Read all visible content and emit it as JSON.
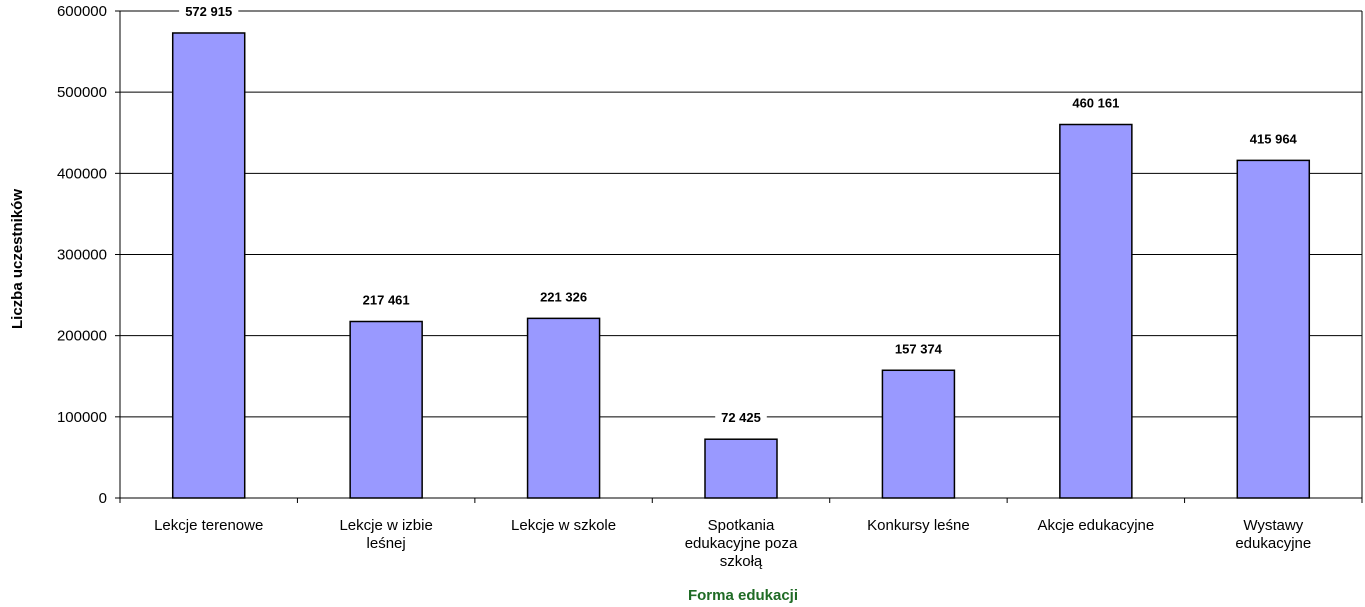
{
  "chart_data": {
    "type": "bar",
    "title": "",
    "xlabel": "Forma edukacji",
    "ylabel": "Liczba uczestników",
    "ylim": [
      0,
      600000
    ],
    "yticks": [
      "0",
      "100000",
      "200000",
      "300000",
      "400000",
      "500000",
      "600000"
    ],
    "grid": true,
    "legend": "none",
    "categories": [
      [
        "Lekcje terenowe"
      ],
      [
        "Lekcje w izbie",
        "leśnej"
      ],
      [
        "Lekcje w szkole"
      ],
      [
        "Spotkania",
        "edukacyjne poza",
        "szkołą"
      ],
      [
        "Konkursy leśne"
      ],
      [
        "Akcje edukacyjne"
      ],
      [
        "Wystawy",
        "edukacyjne"
      ]
    ],
    "values": [
      572915,
      217461,
      221326,
      72425,
      157374,
      460161,
      415964
    ],
    "data_labels": [
      "572 915",
      "217 461",
      "221 326",
      "72 425",
      "157 374",
      "460 161",
      "415 964"
    ],
    "colors": {
      "bar": "#9999ff",
      "bar_edge": "#000000",
      "xlabel": "#1f6b25",
      "grid": "#000000"
    }
  }
}
